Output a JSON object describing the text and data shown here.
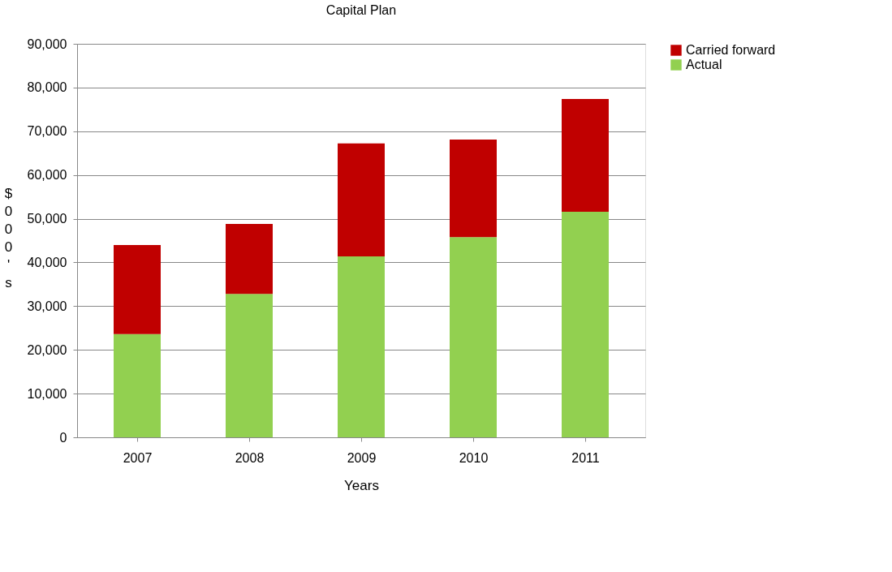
{
  "chart_data": {
    "type": "bar",
    "title": "Capital Plan",
    "xlabel": "Years",
    "ylabel": "$000's",
    "categories": [
      "2007",
      "2008",
      "2009",
      "2010",
      "2011"
    ],
    "series": [
      {
        "name": "Actual",
        "color": "#92d050",
        "values": [
          23600,
          32800,
          41400,
          45800,
          51600
        ]
      },
      {
        "name": "Carried forward",
        "color": "#c00000",
        "values": [
          20400,
          16000,
          25800,
          22300,
          25800
        ]
      }
    ],
    "stacked": true,
    "ylim": [
      0,
      90000
    ],
    "yticks": [
      0,
      {
        "value": 10000,
        "label": "10,000"
      },
      {
        "value": 20000,
        "label": "20,000"
      },
      {
        "value": 30000,
        "label": "30,000"
      },
      {
        "value": 40000,
        "label": "40,000"
      },
      {
        "value": 50000,
        "label": "50,000"
      },
      {
        "value": 60000,
        "label": "60,000"
      },
      {
        "value": 70000,
        "label": "70,000"
      },
      {
        "value": 80000,
        "label": "80,000"
      },
      {
        "value": 90000,
        "label": "90,000"
      }
    ],
    "grid": "y",
    "legend": "right"
  }
}
